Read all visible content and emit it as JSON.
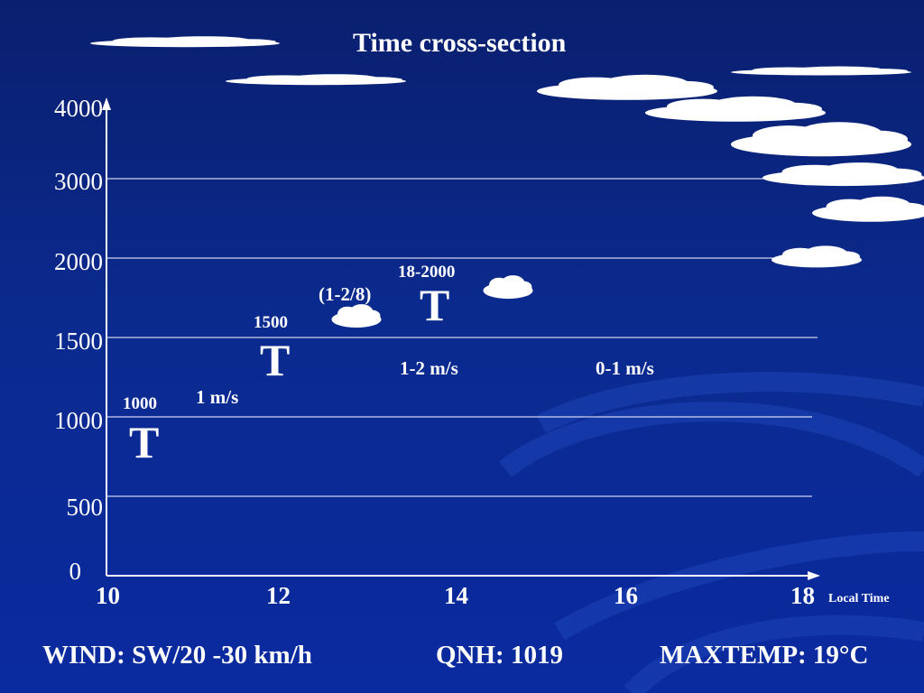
{
  "title": "Time cross-section",
  "chart_data": {
    "type": "scatter",
    "x_axis": {
      "label": "Local Time",
      "ticks": [
        10,
        12,
        14,
        16,
        18
      ],
      "range": [
        10,
        18
      ]
    },
    "y_axis": {
      "ticks": [
        0,
        500,
        1000,
        1500,
        2000,
        3000,
        4000
      ],
      "range": [
        0,
        4000
      ]
    },
    "thermals": [
      {
        "symbol": "T",
        "label": "1000",
        "x": 10.4,
        "y": 850
      },
      {
        "symbol": "T",
        "label": "1500",
        "x": 11.9,
        "y": 1350
      },
      {
        "symbol": "T",
        "label": "18-2000",
        "x": 13.8,
        "y": 1750
      }
    ],
    "cloud_annotation": "(1-2/8)",
    "wind_labels": [
      "1 m/s",
      "1-2 m/s",
      "0-1 m/s"
    ]
  },
  "footer": {
    "wind": "WIND: SW/20 -30 km/h",
    "qnh": "QNH: 1019",
    "maxtemp": "MAXTEMP: 19°C"
  },
  "colors": {
    "background": "#0b2a8e",
    "foreground": "#ffffff",
    "swirl": "#1d45b8"
  }
}
